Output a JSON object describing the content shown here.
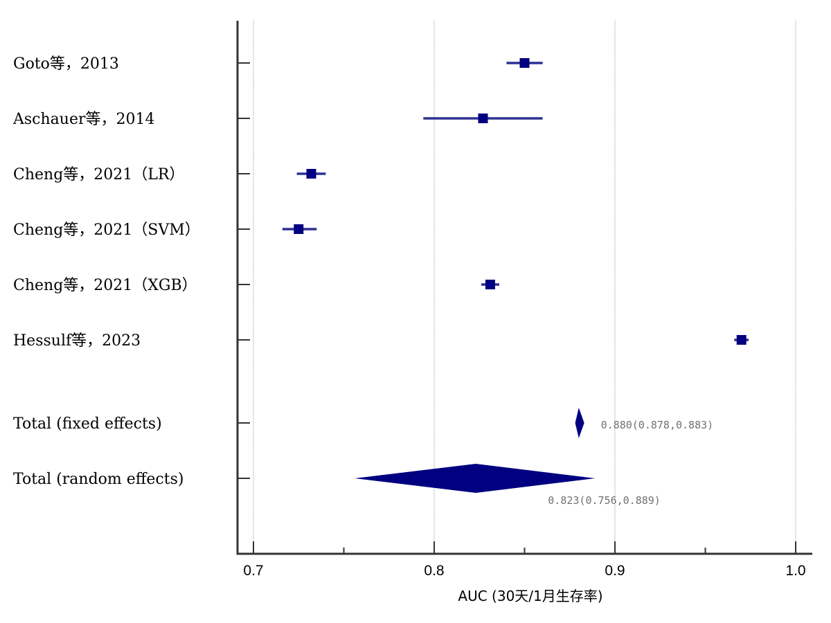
{
  "chart_data": {
    "type": "forest",
    "xlabel": "AUC (30天/1月生存率)",
    "xlim": [
      0.69,
      1.01
    ],
    "ticks": [
      0.7,
      0.8,
      0.9,
      1.0
    ],
    "tick_labels": [
      "0.7",
      "0.8",
      "0.9",
      "1.0"
    ],
    "minor_ticks": [
      0.75,
      0.85,
      0.95
    ],
    "grid": true,
    "colors": {
      "marker": "#000080",
      "ci_line": "#2e3192",
      "axis": "#333333",
      "grid": "#999999",
      "summary_text": "#707070"
    },
    "studies": [
      {
        "label": "Goto等，2013",
        "estimate": 0.85,
        "lower": 0.84,
        "upper": 0.86
      },
      {
        "label": "Aschauer等，2014",
        "estimate": 0.827,
        "lower": 0.794,
        "upper": 0.86
      },
      {
        "label": "Cheng等，2021（LR）",
        "estimate": 0.732,
        "lower": 0.724,
        "upper": 0.74
      },
      {
        "label": "Cheng等，2021（SVM）",
        "estimate": 0.725,
        "lower": 0.716,
        "upper": 0.735
      },
      {
        "label": "Cheng等，2021（XGB）",
        "estimate": 0.831,
        "lower": 0.826,
        "upper": 0.836
      },
      {
        "label": "Hessulf等，2023",
        "estimate": 0.97,
        "lower": 0.966,
        "upper": 0.974
      }
    ],
    "summaries": [
      {
        "label": "Total (fixed effects)",
        "estimate": 0.88,
        "lower": 0.878,
        "upper": 0.883,
        "text": "0.880(0.878,0.883)"
      },
      {
        "label": "Total (random effects)",
        "estimate": 0.823,
        "lower": 0.756,
        "upper": 0.889,
        "text": "0.823(0.756,0.889)"
      }
    ]
  }
}
